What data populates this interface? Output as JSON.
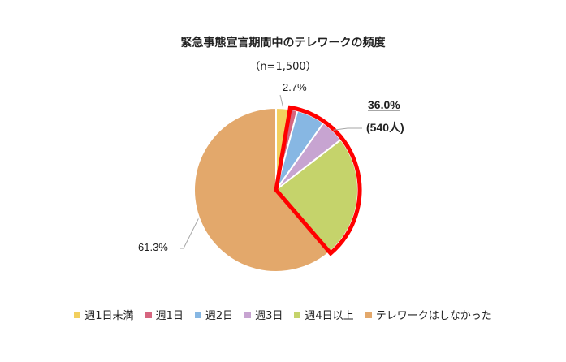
{
  "chart_data": {
    "type": "pie",
    "title": "緊急事態宣言期間中のテレワークの頻度",
    "subtitle": "（n=1,500）",
    "categories": [
      "週1日未満",
      "週1日",
      "週2日",
      "週3日",
      "週4日以上",
      "テレワークはしなかった"
    ],
    "values": [
      2.7,
      1.5,
      5.6,
      4.7,
      24.2,
      61.3
    ],
    "colors": [
      "#f2cf5e",
      "#d6657f",
      "#87b7e3",
      "#c7a4d1",
      "#c5d36b",
      "#e3a86b"
    ],
    "data_labels": {
      "first": "2.7%",
      "last": "61.3%"
    },
    "highlight": {
      "categories": [
        "週1日",
        "週2日",
        "週3日",
        "週4日以上"
      ],
      "percent_label": "36.0%",
      "count_label": "(540人)",
      "outline_color": "#ff0000"
    },
    "legend_position": "bottom"
  }
}
